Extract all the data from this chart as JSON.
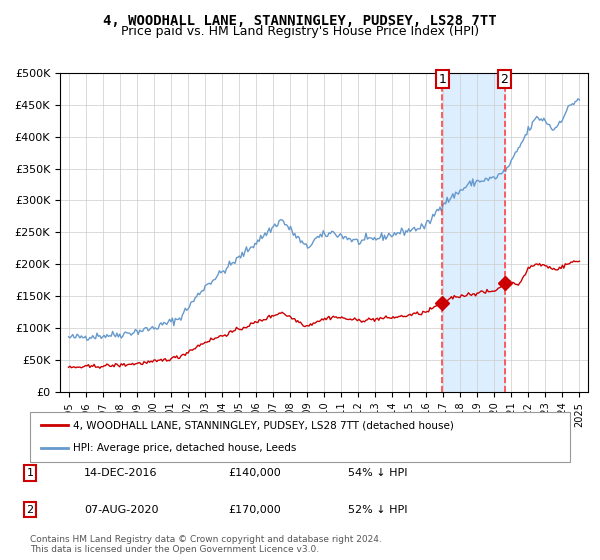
{
  "title": "4, WOODHALL LANE, STANNINGLEY, PUDSEY, LS28 7TT",
  "subtitle": "Price paid vs. HM Land Registry's House Price Index (HPI)",
  "legend_line1": "4, WOODHALL LANE, STANNINGLEY, PUDSEY, LS28 7TT (detached house)",
  "legend_line2": "HPI: Average price, detached house, Leeds",
  "annotation1_date": "14-DEC-2016",
  "annotation1_price": "£140,000",
  "annotation1_hpi": "54% ↓ HPI",
  "annotation2_date": "07-AUG-2020",
  "annotation2_price": "£170,000",
  "annotation2_hpi": "52% ↓ HPI",
  "footer": "Contains HM Land Registry data © Crown copyright and database right 2024.\nThis data is licensed under the Open Government Licence v3.0.",
  "hpi_color": "#6699cc",
  "price_color": "#cc0000",
  "marker_color": "#cc0000",
  "vline_color": "#ff4444",
  "shade_color": "#ddeeff",
  "sale1_year": 2016.95,
  "sale2_year": 2020.6,
  "sale1_price": 140000,
  "sale2_price": 170000,
  "ylim_max": 500000,
  "ylim_min": 0,
  "background_color": "#ffffff",
  "grid_color": "#cccccc"
}
